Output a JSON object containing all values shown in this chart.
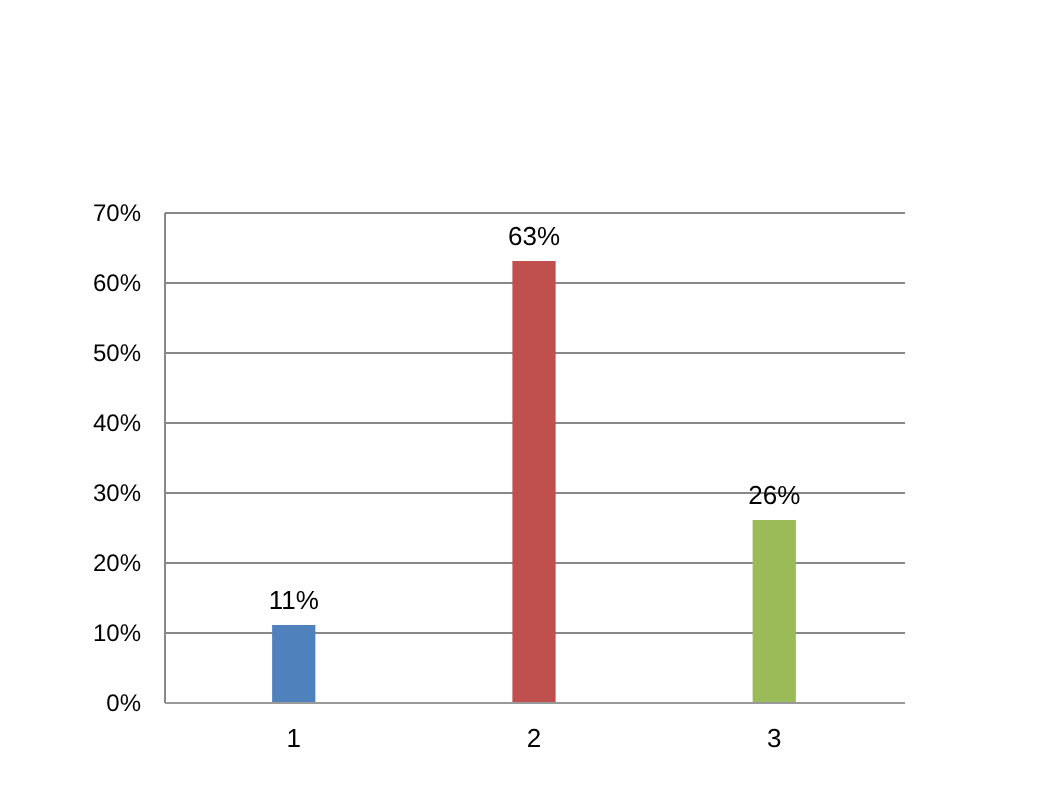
{
  "chart_data": {
    "type": "bar",
    "categories": [
      "1",
      "2",
      "3"
    ],
    "values": [
      11,
      63,
      26
    ],
    "colors": [
      "#4f81bd",
      "#c0504d",
      "#9bbb59"
    ],
    "value_labels": [
      "11%",
      "63%",
      "26%"
    ],
    "ylim": [
      0,
      70
    ],
    "yticks": [
      {
        "value": 0,
        "label": "0%"
      },
      {
        "value": 10,
        "label": "10%"
      },
      {
        "value": 20,
        "label": "20%"
      },
      {
        "value": 30,
        "label": "30%"
      },
      {
        "value": 40,
        "label": "40%"
      },
      {
        "value": 50,
        "label": "50%"
      },
      {
        "value": 60,
        "label": "60%"
      },
      {
        "value": 70,
        "label": "70%"
      }
    ],
    "grid": "y"
  }
}
